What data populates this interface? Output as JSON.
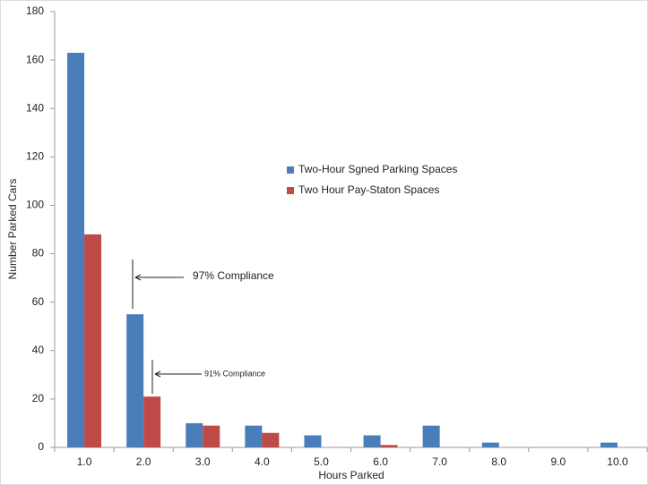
{
  "chart_data": {
    "type": "bar",
    "x_label": "Hours Parked",
    "y_label": "Number Parked Cars",
    "categories": [
      "1.0",
      "2.0",
      "3.0",
      "4.0",
      "5.0",
      "6.0",
      "7.0",
      "8.0",
      "9.0",
      "10.0"
    ],
    "series": [
      {
        "name": "Two-Hour Sgned Parking Spaces",
        "color": "#4a7ebb",
        "values": [
          163,
          55,
          10,
          9,
          5,
          5,
          9,
          2,
          0,
          2
        ]
      },
      {
        "name": "Two Hour Pay-Staton Spaces",
        "color": "#be4b48",
        "values": [
          88,
          21,
          9,
          6,
          0,
          1,
          0,
          0,
          0,
          0
        ]
      }
    ],
    "ylim": [
      0,
      180
    ],
    "yticks": [
      0,
      20,
      40,
      60,
      80,
      100,
      120,
      140,
      160,
      180
    ],
    "grid": false,
    "annotations": [
      "97% Compliance",
      "91% Compliance"
    ]
  }
}
